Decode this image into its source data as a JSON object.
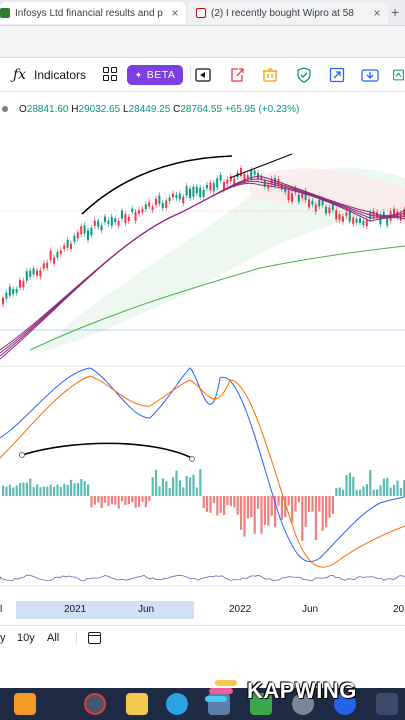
{
  "browser": {
    "tabs": [
      {
        "title": "Infosys Ltd financial results and p",
        "close": "×"
      },
      {
        "title": "(2) I recently bought Wipro at 58",
        "close": "×"
      }
    ],
    "new_tab": "+"
  },
  "toolbar": {
    "fx_icon": "ƒx",
    "indicators_label": "Indicators",
    "beta_label": "BETA",
    "icons": [
      "function-icon",
      "templates-icon",
      "replay-icon",
      "export-icon",
      "alert-icon",
      "shield-icon",
      "fullscreen-icon",
      "snapshot-icon",
      "trading-icon"
    ]
  },
  "ohlc": {
    "open_key": "O",
    "open": "28841.60",
    "high_key": "H",
    "high": "29032.65",
    "low_key": "L",
    "low": "28449.25",
    "close_key": "C",
    "close": "28764.55",
    "change": "+65.95 (+0.23%)"
  },
  "time_axis": {
    "ticks": [
      "l",
      "2021",
      "Jun",
      "2022",
      "Jun",
      "20"
    ]
  },
  "range": {
    "buttons": [
      "y",
      "10y",
      "All"
    ]
  },
  "watermark": {
    "text": "KAPWING"
  },
  "colors": {
    "up": "#089981",
    "down": "#f23645",
    "hist_up": "#26a69a",
    "hist_down": "#ef5350",
    "macd": "#2962ff",
    "signal": "#ff6d00",
    "ma_long": "#4caf50",
    "beta_bg": "#7b3fe4"
  }
}
